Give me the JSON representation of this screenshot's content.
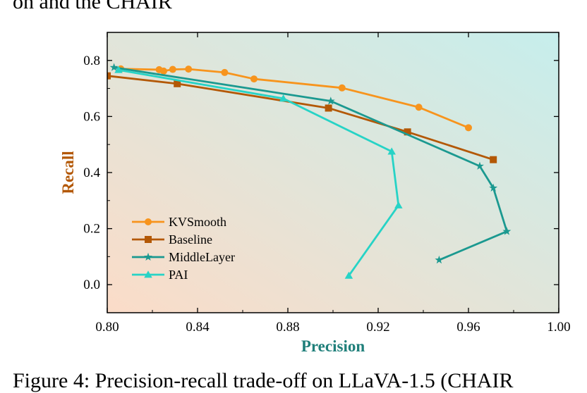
{
  "fragments": {
    "top": "on and the CHAIR",
    "caption": "Figure 4: Precision-recall trade-off on LLaVA-1.5 (CHAIR"
  },
  "chart_data": {
    "type": "line",
    "title": "",
    "xlabel": "Precision",
    "ylabel": "Recall",
    "xlim": [
      0.8,
      1.0
    ],
    "ylim": [
      -0.1,
      0.9
    ],
    "xticks": [
      0.8,
      0.84,
      0.88,
      0.92,
      0.96,
      1.0
    ],
    "xtick_labels": [
      "0.80",
      "0.84",
      "0.88",
      "0.92",
      "0.96",
      "1.00"
    ],
    "yticks": [
      0.0,
      0.2,
      0.4,
      0.6,
      0.8
    ],
    "ytick_labels": [
      "0.0",
      "0.2",
      "0.4",
      "0.6",
      "0.8"
    ],
    "legend_position": "lower-left",
    "grid": false,
    "background_gradient": [
      "#fbdcc8",
      "#c6eeec"
    ],
    "xlabel_color": "#1f7f7a",
    "ylabel_color": "#b35806",
    "series": [
      {
        "name": "KVSmooth",
        "color": "#f7941d",
        "marker": "circle",
        "x": [
          0.806,
          0.823,
          0.825,
          0.829,
          0.836,
          0.852,
          0.865,
          0.904,
          0.938,
          0.96
        ],
        "y": [
          0.77,
          0.767,
          0.762,
          0.768,
          0.769,
          0.757,
          0.734,
          0.702,
          0.633,
          0.56
        ]
      },
      {
        "name": "Baseline",
        "color": "#b35806",
        "marker": "square",
        "x": [
          0.8,
          0.831,
          0.898,
          0.933,
          0.971
        ],
        "y": [
          0.745,
          0.717,
          0.63,
          0.545,
          0.446
        ]
      },
      {
        "name": "MiddleLayer",
        "color": "#1b9990",
        "marker": "star",
        "x": [
          0.803,
          0.899,
          0.965,
          0.971,
          0.977,
          0.947
        ],
        "y": [
          0.775,
          0.655,
          0.423,
          0.345,
          0.19,
          0.088
        ]
      },
      {
        "name": "PAI",
        "color": "#27d3c6",
        "marker": "triangle",
        "x": [
          0.805,
          0.878,
          0.926,
          0.929,
          0.907
        ],
        "y": [
          0.766,
          0.664,
          0.475,
          0.283,
          0.032
        ]
      }
    ]
  }
}
